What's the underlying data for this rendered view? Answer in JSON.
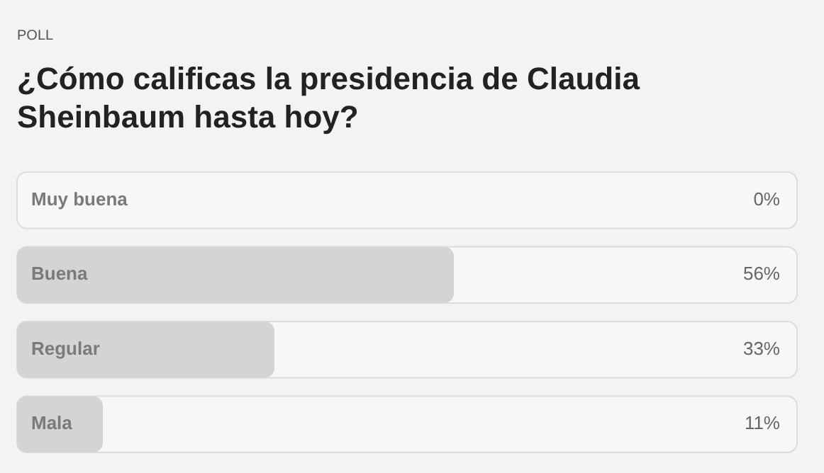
{
  "chart_data": {
    "type": "bar",
    "orientation": "horizontal",
    "subtitle": "POLL",
    "title": "¿Cómo calificas la presidencia de Claudia Sheinbaum hasta hoy?",
    "categories": [
      "Muy buena",
      "Buena",
      "Regular",
      "Mala"
    ],
    "values": [
      0,
      56,
      33,
      11
    ],
    "value_labels": [
      "0%",
      "56%",
      "33%",
      "11%"
    ],
    "color": "#d4d4d4",
    "xlim": [
      0,
      100
    ],
    "legend": false
  }
}
